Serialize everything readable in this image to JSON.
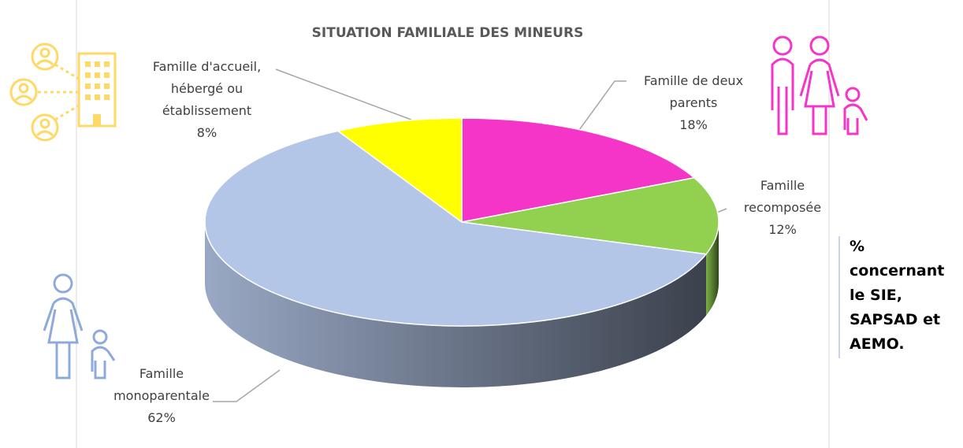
{
  "chart_data": {
    "type": "pie3d",
    "title": "SITUATION FAMILIALE DES MINEURS",
    "categories": [
      "Famille de deux parents",
      "Famille recomposée",
      "Famille monoparentale",
      "Famille d'accueil, hébergé ou établissement"
    ],
    "values": [
      18,
      12,
      62,
      8
    ],
    "value_labels": [
      "18%",
      "12%",
      "62%",
      "8%"
    ],
    "colors": [
      "#f535c8",
      "#92d050",
      "#b4c6e7",
      "#ffff00"
    ],
    "annotation": "% concernant le SIE, SAPSAD et AEMO."
  }
}
